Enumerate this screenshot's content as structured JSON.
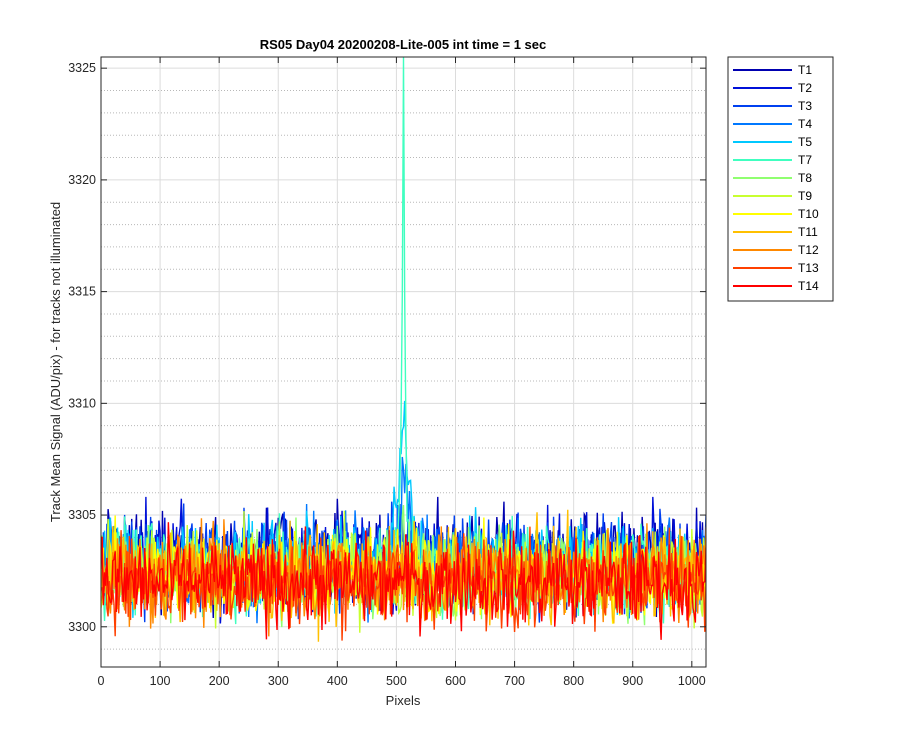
{
  "chart_data": {
    "type": "line",
    "title": "RS05 Day04 20200208-Lite-005 int time = 1 sec",
    "xlabel": "Pixels",
    "ylabel": "Track Mean Signal (ADU/pix) - for tracks not illuminated",
    "xlim": [
      0,
      1024
    ],
    "ylim": [
      3298.2,
      3325.5
    ],
    "xticks": [
      0,
      100,
      200,
      300,
      400,
      500,
      600,
      700,
      800,
      900,
      1000
    ],
    "yticks": [
      3300,
      3305,
      3310,
      3315,
      3320,
      3325
    ],
    "yminor_step": 1,
    "grid": true,
    "legend_position": "outside-right-top",
    "peak": {
      "x": 512,
      "top_value": 3325.5
    },
    "series": [
      {
        "name": "T1",
        "color": "#0000b0",
        "mean": 3303.1,
        "noise": 1.05,
        "peak_height": 0
      },
      {
        "name": "T2",
        "color": "#0010d8",
        "mean": 3303.0,
        "noise": 1.05,
        "peak_height": 0
      },
      {
        "name": "T3",
        "color": "#0040f0",
        "mean": 3302.9,
        "noise": 1.05,
        "peak_height": 1.5
      },
      {
        "name": "T4",
        "color": "#0078ff",
        "mean": 3302.8,
        "noise": 1.0,
        "peak_height": 4.0
      },
      {
        "name": "T5",
        "color": "#00c8ff",
        "mean": 3302.7,
        "noise": 1.0,
        "peak_height": 7.0
      },
      {
        "name": "T7",
        "color": "#40ffc0",
        "mean": 3302.6,
        "noise": 1.0,
        "peak_height": 23.0
      },
      {
        "name": "T8",
        "color": "#90ff70",
        "mean": 3302.5,
        "noise": 1.0,
        "peak_height": 1.0
      },
      {
        "name": "T9",
        "color": "#c8ff30",
        "mean": 3302.4,
        "noise": 1.0,
        "peak_height": 0
      },
      {
        "name": "T10",
        "color": "#ffff00",
        "mean": 3302.3,
        "noise": 1.0,
        "peak_height": 0
      },
      {
        "name": "T11",
        "color": "#ffc000",
        "mean": 3302.3,
        "noise": 1.0,
        "peak_height": 0
      },
      {
        "name": "T12",
        "color": "#ff8800",
        "mean": 3302.2,
        "noise": 1.0,
        "peak_height": 0
      },
      {
        "name": "T13",
        "color": "#ff4000",
        "mean": 3302.1,
        "noise": 1.0,
        "peak_height": 0
      },
      {
        "name": "T14",
        "color": "#ff0000",
        "mean": 3302.0,
        "noise": 1.0,
        "peak_height": 0
      }
    ]
  }
}
